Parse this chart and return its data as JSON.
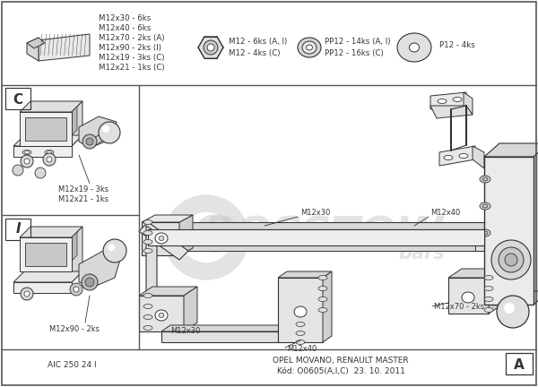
{
  "bg_color": "#ffffff",
  "border_color": "#555555",
  "line_color": "#333333",
  "text_color": "#333333",
  "watermark_text": "BOSSTOW",
  "watermark_subtext": "bars",
  "watermark_color": "#cccccc",
  "watermark_alpha": 0.55,
  "parts_text_top": [
    "M12x30 - 6ks",
    "M12x40 - 6ks",
    "M12x70 - 2ks (A)",
    "M12x90 - 2ks (I)",
    "M12x19 - 3ks (C)",
    "M12x21 - 1ks (C)"
  ],
  "parts_text_mid1": [
    "M12 - 6ks (A, I)",
    "M12 - 4ks (C)"
  ],
  "parts_text_mid2": [
    "PP12 - 14ks (A, I)",
    "PP12 - 16ks (C)"
  ],
  "parts_text_right": "P12 - 4ks",
  "label_C": "C",
  "label_I": "I",
  "label_A": "A",
  "bottom_left_text": "AIC 250 24 I",
  "bottom_center_text": "OPEL MOVANO, RENAULT MASTER",
  "bottom_center_text2": "Kód: O0605(A,I,C)  23. 10. 2011",
  "ann_M12x19": "M12x19 - 3ks",
  "ann_M12x21": "M12x21 - 1ks",
  "ann_M12x90": "M12x90 - 2ks",
  "ann_M12x30a": "M12x30",
  "ann_M12x40a": "M12x40",
  "ann_M12x30b": "M12x30",
  "ann_M12x40b": "M12x40",
  "ann_M12x70": "M12x70 - 2ks"
}
